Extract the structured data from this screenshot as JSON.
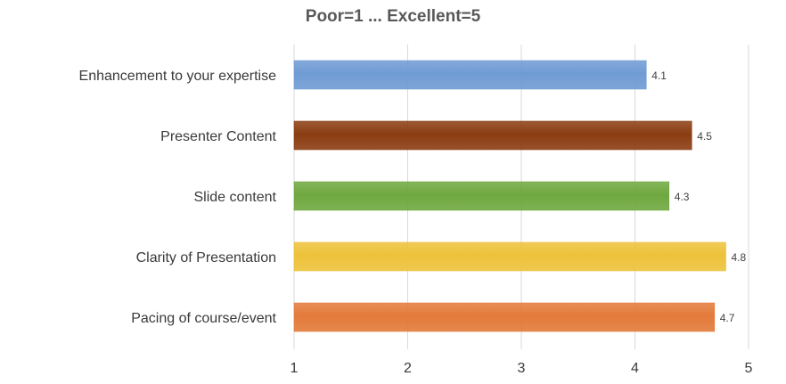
{
  "chart_data": {
    "type": "bar",
    "orientation": "horizontal",
    "title": "Poor=1 ... Excellent=5",
    "categories": [
      "Enhancement to your expertise",
      "Presenter Content",
      "Slide content",
      "Clarity of Presentation",
      "Pacing of course/event"
    ],
    "values": [
      4.1,
      4.5,
      4.3,
      4.8,
      4.7
    ],
    "data_labels": [
      "4.1",
      "4.5",
      "4.3",
      "4.8",
      "4.7"
    ],
    "colors": [
      "#6f9bd4",
      "#8b3d12",
      "#6fa83f",
      "#edc23a",
      "#e37a3a"
    ],
    "xlim": [
      1,
      5
    ],
    "xticks": [
      1,
      2,
      3,
      4,
      5
    ],
    "xtick_labels": [
      "1",
      "2",
      "3",
      "4",
      "5"
    ],
    "grid": "vertical",
    "legend": "none"
  }
}
